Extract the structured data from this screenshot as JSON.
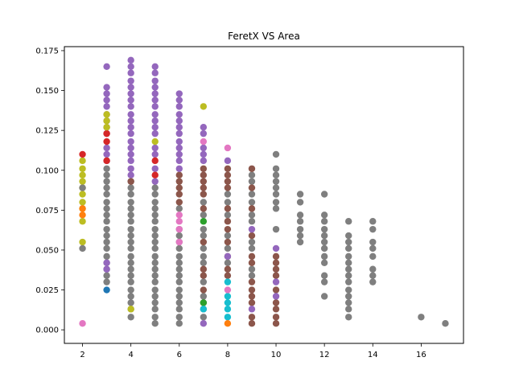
{
  "chart_data": {
    "type": "scatter",
    "title": "FeretX VS Area",
    "xlabel": "",
    "ylabel": "",
    "xlim": [
      1.25,
      17.75
    ],
    "ylim": [
      -0.0085,
      0.1775
    ],
    "xticks": [
      2,
      4,
      6,
      8,
      10,
      12,
      14,
      16
    ],
    "yticks": [
      0.0,
      0.025,
      0.05,
      0.075,
      0.1,
      0.125,
      0.15,
      0.175
    ],
    "ytick_labels": [
      "0.000",
      "0.025",
      "0.050",
      "0.075",
      "0.100",
      "0.125",
      "0.150",
      "0.175"
    ],
    "grid": false,
    "legend": "none",
    "colors": {
      "blue": "#1f77b4",
      "orange": "#ff7f0e",
      "green": "#2ca02c",
      "red": "#d62728",
      "purple": "#9467bd",
      "brown": "#8c564b",
      "pink": "#e377c2",
      "gray": "#7f7f7f",
      "olive": "#bcbd22",
      "cyan": "#17becf"
    },
    "groups": [
      {
        "x": 2,
        "color": "olive",
        "y": [
          0.055,
          0.068,
          0.076,
          0.08,
          0.085,
          0.089,
          0.093,
          0.097,
          0.101,
          0.106
        ]
      },
      {
        "x": 2,
        "color": "orange",
        "y": [
          0.072,
          0.076
        ]
      },
      {
        "x": 2,
        "color": "red",
        "y": [
          0.11
        ]
      },
      {
        "x": 2,
        "color": "gray",
        "y": [
          0.051,
          0.089
        ]
      },
      {
        "x": 2,
        "color": "pink",
        "y": [
          0.004
        ]
      },
      {
        "x": 3,
        "color": "gray",
        "y": [
          0.03,
          0.034,
          0.038,
          0.042,
          0.046,
          0.051,
          0.055,
          0.059,
          0.063,
          0.068,
          0.072,
          0.076,
          0.08,
          0.085,
          0.089,
          0.093,
          0.097,
          0.101
        ]
      },
      {
        "x": 3,
        "color": "purple",
        "y": [
          0.038,
          0.042,
          0.106,
          0.11,
          0.114,
          0.123,
          0.127,
          0.131,
          0.135,
          0.14,
          0.144,
          0.148,
          0.152,
          0.165
        ]
      },
      {
        "x": 3,
        "color": "red",
        "y": [
          0.106,
          0.118,
          0.123
        ]
      },
      {
        "x": 3,
        "color": "olive",
        "y": [
          0.127,
          0.131,
          0.135
        ]
      },
      {
        "x": 3,
        "color": "blue",
        "y": [
          0.025
        ]
      },
      {
        "x": 4,
        "color": "gray",
        "y": [
          0.008,
          0.013,
          0.017,
          0.021,
          0.025,
          0.03,
          0.034,
          0.038,
          0.042,
          0.046,
          0.051,
          0.055,
          0.059,
          0.063,
          0.068,
          0.072,
          0.076,
          0.08,
          0.085,
          0.089,
          0.093
        ]
      },
      {
        "x": 4,
        "color": "purple",
        "y": [
          0.097,
          0.101,
          0.106,
          0.11,
          0.114,
          0.118,
          0.123,
          0.127,
          0.131,
          0.135,
          0.14,
          0.144,
          0.148,
          0.152,
          0.156,
          0.161,
          0.165,
          0.169
        ]
      },
      {
        "x": 4,
        "color": "olive",
        "y": [
          0.013
        ]
      },
      {
        "x": 4,
        "color": "brown",
        "y": [
          0.093
        ]
      },
      {
        "x": 5,
        "color": "gray",
        "y": [
          0.004,
          0.008,
          0.013,
          0.017,
          0.021,
          0.025,
          0.03,
          0.034,
          0.038,
          0.042,
          0.046,
          0.051,
          0.055,
          0.059,
          0.063,
          0.068,
          0.072,
          0.076,
          0.08,
          0.085,
          0.089
        ]
      },
      {
        "x": 5,
        "color": "purple",
        "y": [
          0.093,
          0.101,
          0.11,
          0.114,
          0.123,
          0.127,
          0.131,
          0.135,
          0.14,
          0.144,
          0.148,
          0.152,
          0.156,
          0.161,
          0.165
        ]
      },
      {
        "x": 5,
        "color": "red",
        "y": [
          0.097,
          0.106
        ]
      },
      {
        "x": 5,
        "color": "olive",
        "y": [
          0.118
        ]
      },
      {
        "x": 6,
        "color": "gray",
        "y": [
          0.004,
          0.008,
          0.013,
          0.017,
          0.021,
          0.025,
          0.03,
          0.034,
          0.038,
          0.042,
          0.046,
          0.051,
          0.055,
          0.059,
          0.063,
          0.076
        ]
      },
      {
        "x": 6,
        "color": "brown",
        "y": [
          0.08,
          0.085,
          0.089,
          0.093,
          0.097
        ]
      },
      {
        "x": 6,
        "color": "pink",
        "y": [
          0.055,
          0.063,
          0.068,
          0.072
        ]
      },
      {
        "x": 6,
        "color": "purple",
        "y": [
          0.101,
          0.106,
          0.11,
          0.114,
          0.118,
          0.123,
          0.127,
          0.131,
          0.135,
          0.14,
          0.144,
          0.148
        ]
      },
      {
        "x": 7,
        "color": "gray",
        "y": [
          0.008,
          0.013,
          0.021,
          0.03,
          0.042,
          0.046,
          0.051,
          0.059,
          0.063,
          0.072,
          0.08
        ]
      },
      {
        "x": 7,
        "color": "brown",
        "y": [
          0.017,
          0.025,
          0.034,
          0.038,
          0.055,
          0.076,
          0.085,
          0.089,
          0.093,
          0.097,
          0.101
        ]
      },
      {
        "x": 7,
        "color": "green",
        "y": [
          0.017,
          0.068
        ]
      },
      {
        "x": 7,
        "color": "cyan",
        "y": [
          0.013
        ]
      },
      {
        "x": 7,
        "color": "purple",
        "y": [
          0.004,
          0.106,
          0.11,
          0.114,
          0.123,
          0.127
        ]
      },
      {
        "x": 7,
        "color": "pink",
        "y": [
          0.118
        ]
      },
      {
        "x": 7,
        "color": "olive",
        "y": [
          0.14
        ]
      },
      {
        "x": 8,
        "color": "gray",
        "y": [
          0.042,
          0.051,
          0.059,
          0.072,
          0.08,
          0.085
        ]
      },
      {
        "x": 8,
        "color": "brown",
        "y": [
          0.034,
          0.038,
          0.046,
          0.055,
          0.063,
          0.068,
          0.076,
          0.089,
          0.093,
          0.097,
          0.101
        ]
      },
      {
        "x": 8,
        "color": "cyan",
        "y": [
          0.008,
          0.013,
          0.017,
          0.021,
          0.03
        ]
      },
      {
        "x": 8,
        "color": "orange",
        "y": [
          0.004
        ]
      },
      {
        "x": 8,
        "color": "purple",
        "y": [
          0.046,
          0.106
        ]
      },
      {
        "x": 8,
        "color": "pink",
        "y": [
          0.025,
          0.114
        ]
      },
      {
        "x": 9,
        "color": "gray",
        "y": [
          0.034,
          0.038,
          0.051,
          0.055,
          0.068,
          0.072,
          0.08,
          0.085,
          0.093,
          0.097
        ]
      },
      {
        "x": 9,
        "color": "brown",
        "y": [
          0.004,
          0.008,
          0.017,
          0.021,
          0.025,
          0.03,
          0.042,
          0.046,
          0.059,
          0.076,
          0.089,
          0.101
        ]
      },
      {
        "x": 9,
        "color": "purple",
        "y": [
          0.013,
          0.063
        ]
      },
      {
        "x": 10,
        "color": "gray",
        "y": [
          0.063,
          0.076,
          0.08,
          0.085,
          0.089,
          0.093,
          0.097,
          0.101,
          0.11
        ]
      },
      {
        "x": 10,
        "color": "brown",
        "y": [
          0.004,
          0.008,
          0.013,
          0.017,
          0.025,
          0.034,
          0.038,
          0.042,
          0.046
        ]
      },
      {
        "x": 10,
        "color": "purple",
        "y": [
          0.021,
          0.03,
          0.051
        ]
      },
      {
        "x": 11,
        "color": "gray",
        "y": [
          0.055,
          0.059,
          0.063,
          0.068,
          0.072,
          0.08,
          0.085
        ]
      },
      {
        "x": 12,
        "color": "gray",
        "y": [
          0.021,
          0.03,
          0.034,
          0.042,
          0.046,
          0.051,
          0.055,
          0.059,
          0.063,
          0.068,
          0.072,
          0.085
        ]
      },
      {
        "x": 13,
        "color": "gray",
        "y": [
          0.008,
          0.013,
          0.017,
          0.021,
          0.025,
          0.03,
          0.034,
          0.038,
          0.042,
          0.046,
          0.051,
          0.055,
          0.059,
          0.068
        ]
      },
      {
        "x": 14,
        "color": "gray",
        "y": [
          0.03,
          0.034,
          0.038,
          0.046,
          0.051,
          0.055,
          0.063,
          0.068
        ]
      },
      {
        "x": 16,
        "color": "gray",
        "y": [
          0.008
        ]
      },
      {
        "x": 17,
        "color": "gray",
        "y": [
          0.004
        ]
      }
    ]
  }
}
